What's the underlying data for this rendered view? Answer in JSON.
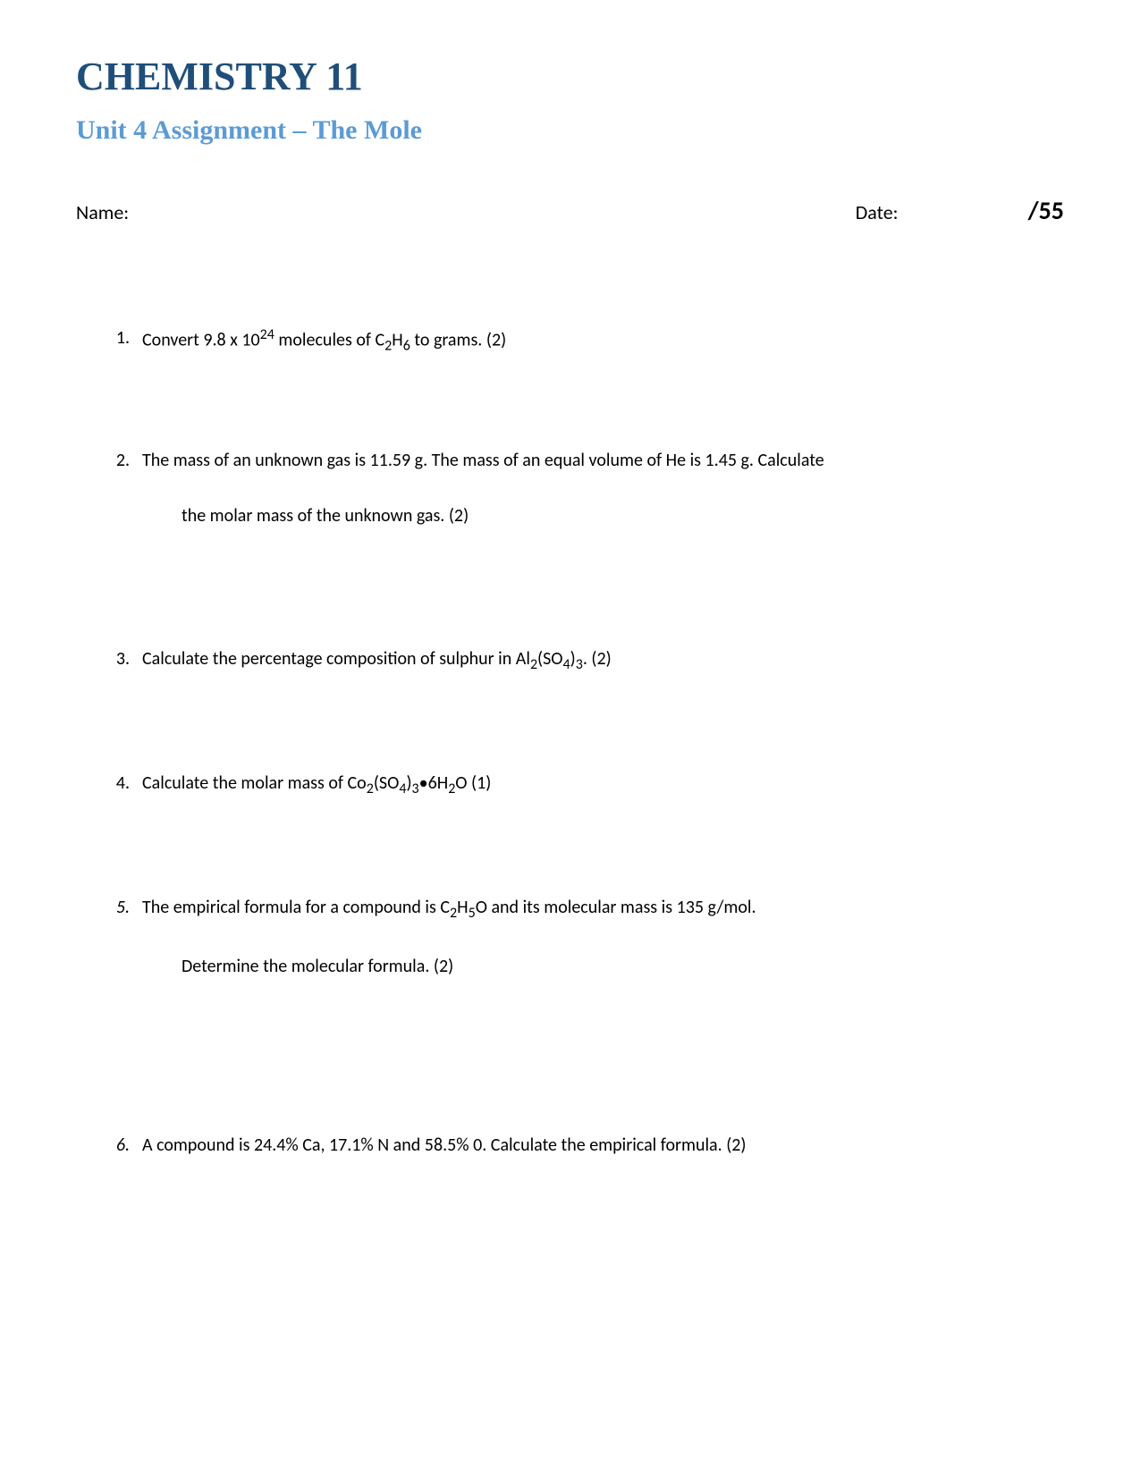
{
  "header": {
    "course_title": "CHEMISTRY 11",
    "subtitle": "Unit 4 Assignment – The Mole",
    "name_label": "Name:",
    "date_label": "Date:",
    "total_score": "/55"
  },
  "colors": {
    "title_color": "#1f4e79",
    "subtitle_color": "#5b9bd5",
    "text_color": "#000000",
    "background": "#ffffff"
  },
  "typography": {
    "title_font": "Times New Roman",
    "title_size_pt": 32,
    "subtitle_size_pt": 22,
    "body_font": "Calibri",
    "body_size_pt": 15
  },
  "questions": [
    {
      "number": "1.",
      "number_style": "normal",
      "text_parts": [
        {
          "t": "Convert 9.8 x 10",
          "style": "normal"
        },
        {
          "t": "24",
          "style": "sup"
        },
        {
          "t": " molecules of C",
          "style": "normal"
        },
        {
          "t": "2",
          "style": "sub"
        },
        {
          "t": "H",
          "style": "normal"
        },
        {
          "t": "6",
          "style": "sub"
        },
        {
          "t": " to grams. (2)",
          "style": "normal"
        }
      ],
      "continuation": null,
      "spacing_class": "q1"
    },
    {
      "number": "2.",
      "number_style": "normal",
      "text_parts": [
        {
          "t": "The mass of an unknown gas is 11.59 g. The mass of an equal volume of He is 1.45 g. Calculate",
          "style": "normal"
        }
      ],
      "continuation": "the molar mass of the unknown gas. (2)",
      "spacing_class": "q2"
    },
    {
      "number": "3.",
      "number_style": "normal",
      "text_parts": [
        {
          "t": "Calculate the percentage composition of sulphur in Al",
          "style": "normal"
        },
        {
          "t": "2",
          "style": "sub"
        },
        {
          "t": "(SO",
          "style": "normal"
        },
        {
          "t": "4",
          "style": "sub"
        },
        {
          "t": ")",
          "style": "normal"
        },
        {
          "t": "3",
          "style": "sub"
        },
        {
          "t": ". (2)",
          "style": "normal"
        }
      ],
      "continuation": null,
      "spacing_class": "q3"
    },
    {
      "number": "4.",
      "number_style": "normal",
      "text_parts": [
        {
          "t": "Calculate the molar mass of Co",
          "style": "normal"
        },
        {
          "t": "2",
          "style": "sub"
        },
        {
          "t": "(SO",
          "style": "normal"
        },
        {
          "t": "4",
          "style": "sub"
        },
        {
          "t": ")",
          "style": "normal"
        },
        {
          "t": "3",
          "style": "sub"
        },
        {
          "t": "•6H",
          "style": "normal"
        },
        {
          "t": "2",
          "style": "sub"
        },
        {
          "t": "O   (1)",
          "style": "normal"
        }
      ],
      "continuation": null,
      "spacing_class": "q4"
    },
    {
      "number": "5.",
      "number_style": "italic",
      "text_parts": [
        {
          "t": "The empirical formula for a compound is C",
          "style": "normal"
        },
        {
          "t": "2",
          "style": "sub"
        },
        {
          "t": "H",
          "style": "normal"
        },
        {
          "t": "5",
          "style": "sub"
        },
        {
          "t": "O and its molecular mass is 135 g/mol.",
          "style": "normal"
        }
      ],
      "continuation": "Determine the molecular formula. (2)",
      "spacing_class": "q5"
    },
    {
      "number": "6.",
      "number_style": "italic",
      "text_parts": [
        {
          "t": "A compound is 24.4% Ca, 17.1% N and 58.5% 0. Calculate the empirical formula. (2)",
          "style": "normal"
        }
      ],
      "continuation": null,
      "spacing_class": "q6"
    }
  ]
}
